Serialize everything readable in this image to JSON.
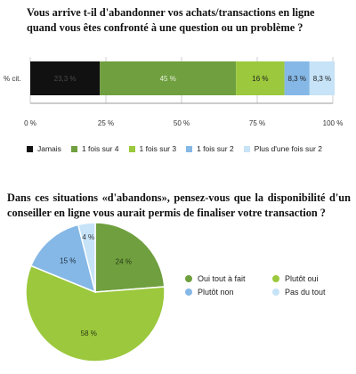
{
  "chart1": {
    "title": "Vous arrive t-il d'abandonner vos achats/transactions en ligne quand vous êtes confronté à une question ou un problème ?",
    "row_label": "% cit.",
    "tick_labels": [
      "0 %",
      "25 %",
      "50 %",
      "75 %",
      "100 %"
    ],
    "legend": [
      {
        "label": "Jamais",
        "color": "#111111"
      },
      {
        "label": "1 fois sur 4",
        "color": "#6f9f3e"
      },
      {
        "label": "1 fois sur 3",
        "color": "#9bc83c"
      },
      {
        "label": "1 fois sur 2",
        "color": "#85b8e6"
      },
      {
        "label": "Plus d'une fois sur 2",
        "color": "#c6e3f7"
      }
    ]
  },
  "chart2": {
    "title": "Dans ces situations «d'abandons», pensez-vous que la disponibilité d'un conseiller en ligne vous aurait permis de finaliser votre transaction ?",
    "legend": [
      {
        "label": "Oui tout à fait",
        "color": "#6f9f3e"
      },
      {
        "label": "Plutôt oui",
        "color": "#9bc83c"
      },
      {
        "label": "Plutôt non",
        "color": "#85b8e6"
      },
      {
        "label": "Pas du tout",
        "color": "#c6e3f7"
      }
    ]
  },
  "chart_data": [
    {
      "type": "bar",
      "orientation": "horizontal-stacked",
      "title": "Vous arrive t-il d'abandonner vos achats/transactions en ligne quand vous êtes confronté à une question ou un problème ?",
      "categories": [
        "% cit."
      ],
      "xlim": [
        0,
        100
      ],
      "series": [
        {
          "name": "Jamais",
          "values": [
            23
          ],
          "label": "23,3 %",
          "color": "#111111"
        },
        {
          "name": "1 fois sur 4",
          "values": [
            45
          ],
          "label": "45 %",
          "color": "#6f9f3e"
        },
        {
          "name": "1 fois sur 3",
          "values": [
            16
          ],
          "label": "16 %",
          "color": "#9bc83c"
        },
        {
          "name": "1 fois sur 2",
          "values": [
            8.3
          ],
          "label": "8,3 %",
          "color": "#85b8e6"
        },
        {
          "name": "Plus d'une fois sur 2",
          "values": [
            8.3
          ],
          "label": "8,3 %",
          "color": "#c6e3f7"
        }
      ],
      "grid": true,
      "legend": "bottom"
    },
    {
      "type": "pie",
      "title": "Dans ces situations «d'abandons», pensez-vous que la disponibilité d'un conseiller en ligne vous aurait permis de finaliser votre transaction ?",
      "slices": [
        {
          "name": "Oui tout à fait",
          "value": 24,
          "label": "24 %",
          "color": "#6f9f3e"
        },
        {
          "name": "Plutôt oui",
          "value": 58,
          "label": "58 %",
          "color": "#9bc83c"
        },
        {
          "name": "Plutôt non",
          "value": 15,
          "label": "15 %",
          "color": "#85b8e6"
        },
        {
          "name": "Pas du tout",
          "value": 4,
          "label": "4 %",
          "color": "#c6e3f7"
        }
      ],
      "legend": "right"
    }
  ]
}
